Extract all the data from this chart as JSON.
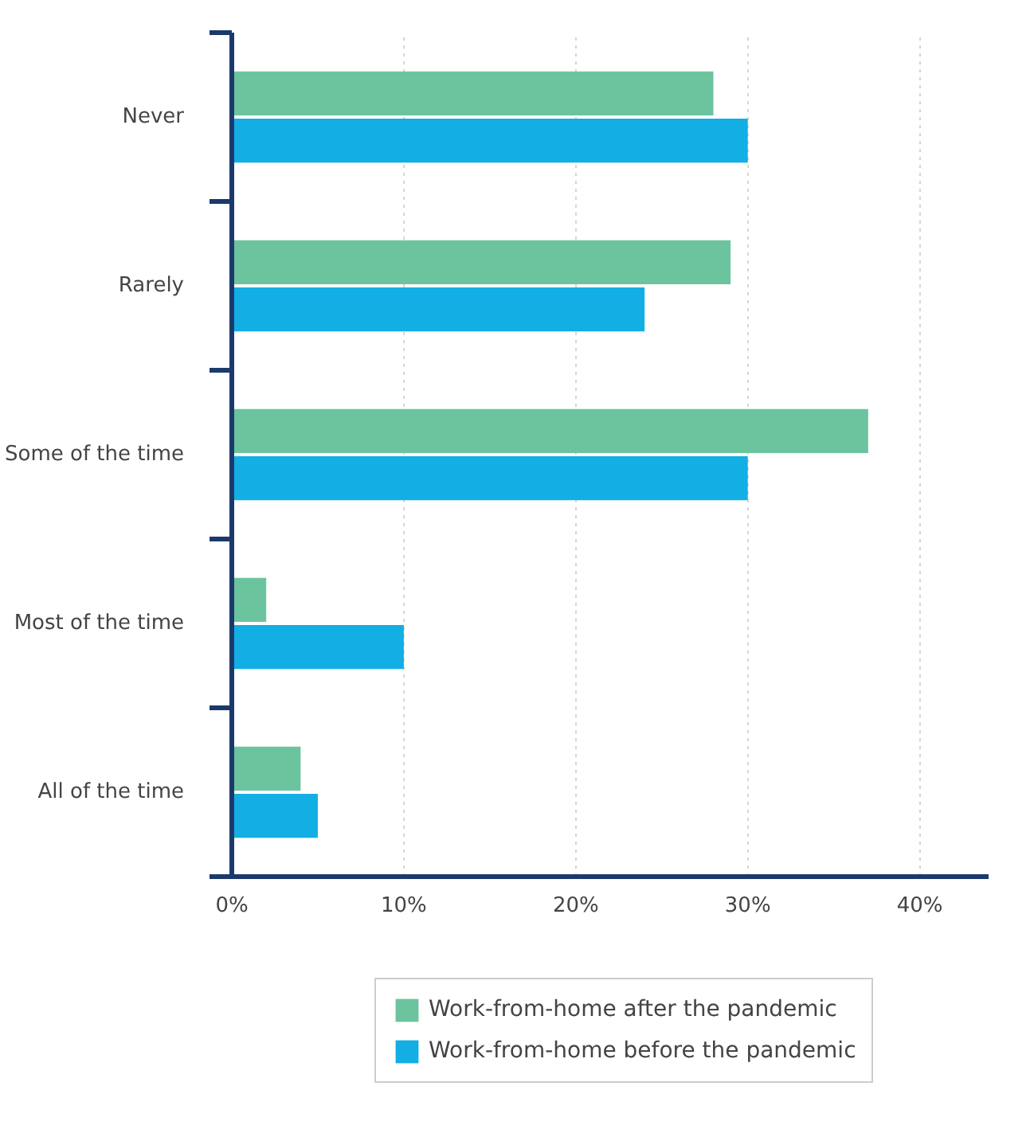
{
  "chart_data": {
    "type": "bar",
    "orientation": "horizontal",
    "categories": [
      "Never",
      "Rarely",
      "Some of the time",
      "Most of the time",
      "All of the time"
    ],
    "series": [
      {
        "name": "Work-from-home after the pandemic",
        "color": "#6cc49e",
        "values": [
          28,
          29,
          37,
          2,
          4
        ]
      },
      {
        "name": "Work-from-home before the pandemic",
        "color": "#12aee4",
        "values": [
          30,
          24,
          30,
          10,
          5
        ]
      }
    ],
    "xlim": [
      0,
      44
    ],
    "xticks": [
      {
        "value": 0,
        "label": "0%"
      },
      {
        "value": 10,
        "label": "10%"
      },
      {
        "value": 20,
        "label": "20%"
      },
      {
        "value": 30,
        "label": "30%"
      },
      {
        "value": 40,
        "label": "40%"
      }
    ],
    "grid": "x",
    "legend": "bottom"
  }
}
